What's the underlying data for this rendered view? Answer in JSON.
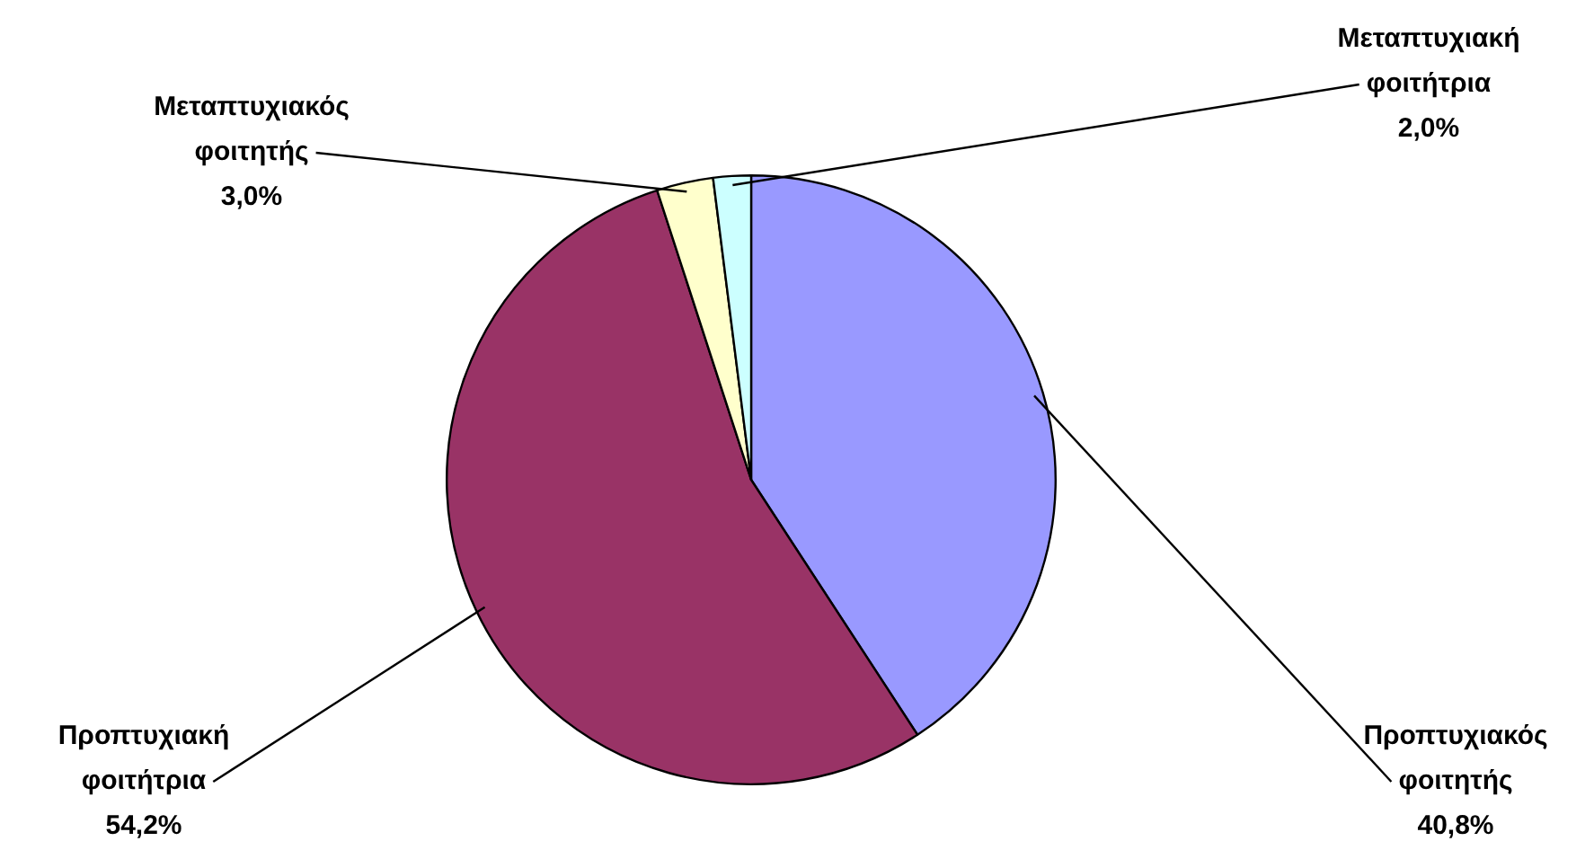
{
  "chart_data": {
    "type": "pie",
    "categories": [
      "Προπτυχιακός φοιτητής",
      "Προπτυχιακή φοιτήτρια",
      "Μεταπτυχιακός φοιτητής",
      "Μεταπτυχιακή φοιτήτρια"
    ],
    "values": [
      40.8,
      54.2,
      3.0,
      2.0
    ],
    "value_labels": [
      "40,8%",
      "54,2%",
      "3,0%",
      "2,0%"
    ],
    "colors": [
      "#9999ff",
      "#993366",
      "#ffffcc",
      "#ccffff"
    ],
    "legend": false
  }
}
